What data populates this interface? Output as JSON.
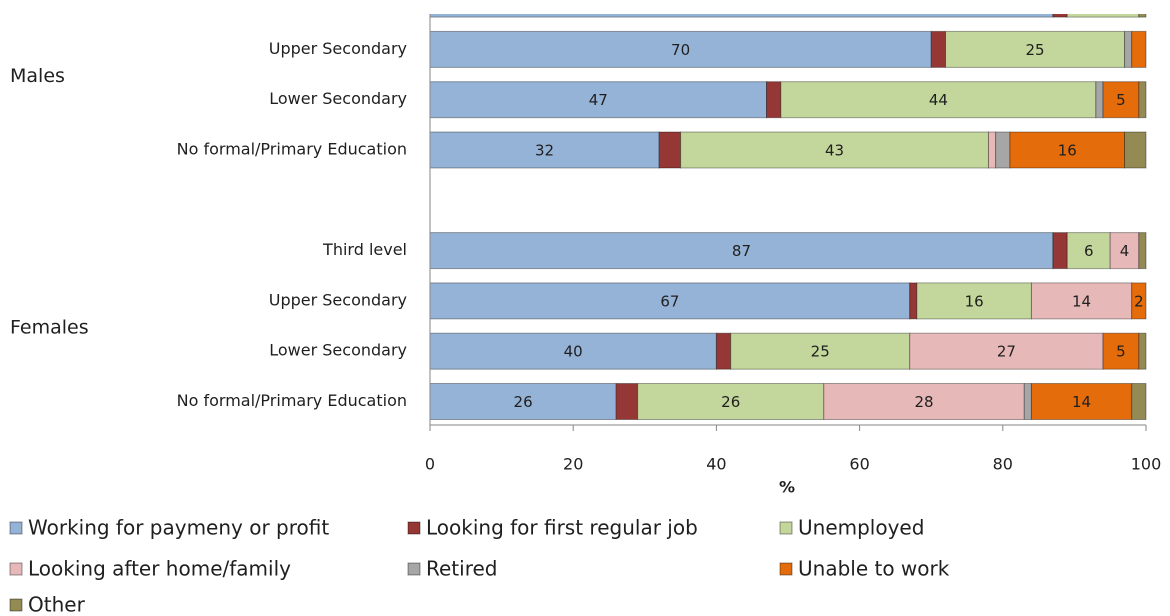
{
  "chart_data": {
    "type": "stacked-bar-horizontal",
    "groups": [
      {
        "name": "Males",
        "categories": [
          null,
          "Upper Secondary",
          "Lower Secondary",
          "No formal/Primary Education"
        ]
      },
      {
        "name": "Females",
        "categories": [
          "Third level",
          "Upper Secondary",
          "Lower Secondary",
          "No formal/Primary Education"
        ]
      }
    ],
    "series": [
      {
        "name": "Working for paymeny or profit",
        "color": "#95b3d7",
        "values": [
          87,
          70,
          47,
          32,
          87,
          67,
          40,
          26
        ],
        "value_labels": [
          null,
          "70",
          "47",
          "32",
          "87",
          "67",
          "40",
          "26"
        ]
      },
      {
        "name": "Looking for first regular job",
        "color": "#953735",
        "values": [
          2,
          2,
          2,
          3,
          2,
          1,
          2,
          3
        ],
        "value_labels": [
          null,
          null,
          null,
          null,
          null,
          null,
          null,
          null
        ]
      },
      {
        "name": "Unemployed",
        "color": "#c3d69b",
        "values": [
          10,
          25,
          44,
          43,
          6,
          16,
          25,
          26
        ],
        "value_labels": [
          null,
          "25",
          "44",
          "43",
          "6",
          "16",
          "25",
          "26"
        ]
      },
      {
        "name": "Looking after home/family",
        "color": "#e6b9b8",
        "values": [
          0,
          0,
          0,
          1,
          4,
          14,
          27,
          28
        ],
        "value_labels": [
          null,
          null,
          null,
          null,
          "4",
          "14",
          "27",
          "28"
        ]
      },
      {
        "name": "Retired",
        "color": "#a6a6a6",
        "values": [
          0,
          1,
          1,
          2,
          0,
          0,
          0,
          1
        ],
        "value_labels": [
          null,
          null,
          null,
          null,
          null,
          null,
          null,
          null
        ]
      },
      {
        "name": "Unable to work",
        "color": "#e46c0a",
        "values": [
          0,
          2,
          5,
          16,
          0,
          2,
          5,
          14
        ],
        "value_labels": [
          null,
          null,
          "5",
          "16",
          null,
          "2",
          "5",
          "14"
        ]
      },
      {
        "name": "Other",
        "color": "#948a54",
        "values": [
          1,
          0,
          1,
          3,
          1,
          0,
          1,
          2
        ],
        "value_labels": [
          null,
          null,
          null,
          null,
          null,
          null,
          null,
          null
        ]
      }
    ],
    "xlabel": "%",
    "xlim": [
      0,
      100
    ],
    "xticks": [
      0,
      20,
      40,
      60,
      80,
      100
    ]
  }
}
